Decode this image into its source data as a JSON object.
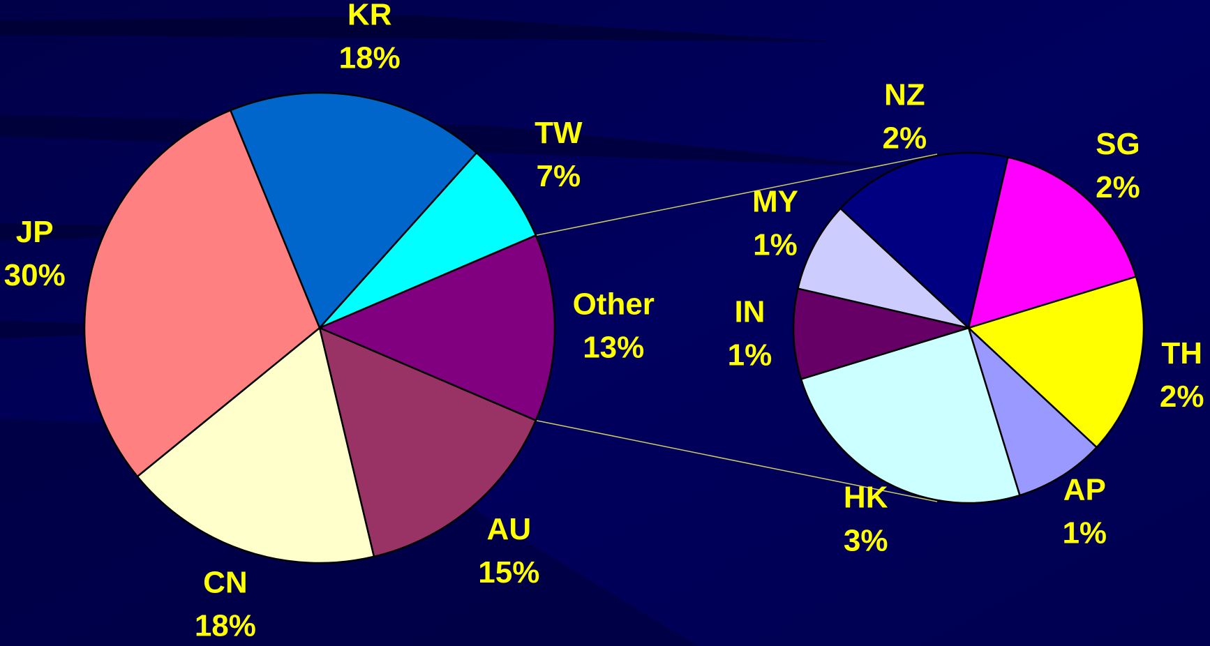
{
  "chart_data": [
    {
      "type": "pie",
      "categories": [
        "KR",
        "TW",
        "Other",
        "AU",
        "CN",
        "JP"
      ],
      "values": [
        18,
        7,
        13,
        15,
        18,
        30
      ],
      "value_labels": [
        "18%",
        "7%",
        "13%",
        "15%",
        "18%",
        "30%"
      ],
      "colors": [
        "#0066cc",
        "#00ffff",
        "#800080",
        "#993366",
        "#ffffcc",
        "#ff8080"
      ]
    },
    {
      "type": "pie",
      "categories": [
        "NZ",
        "SG",
        "TH",
        "AP",
        "HK",
        "IN",
        "MY"
      ],
      "values": [
        2,
        2,
        2,
        1,
        3,
        1,
        1
      ],
      "value_labels": [
        "2%",
        "2%",
        "2%",
        "1%",
        "3%",
        "1%",
        "1%"
      ],
      "colors": [
        "#000080",
        "#ff00ff",
        "#ffff00",
        "#9999ff",
        "#ccffff",
        "#660066",
        "#ccccff"
      ]
    }
  ]
}
